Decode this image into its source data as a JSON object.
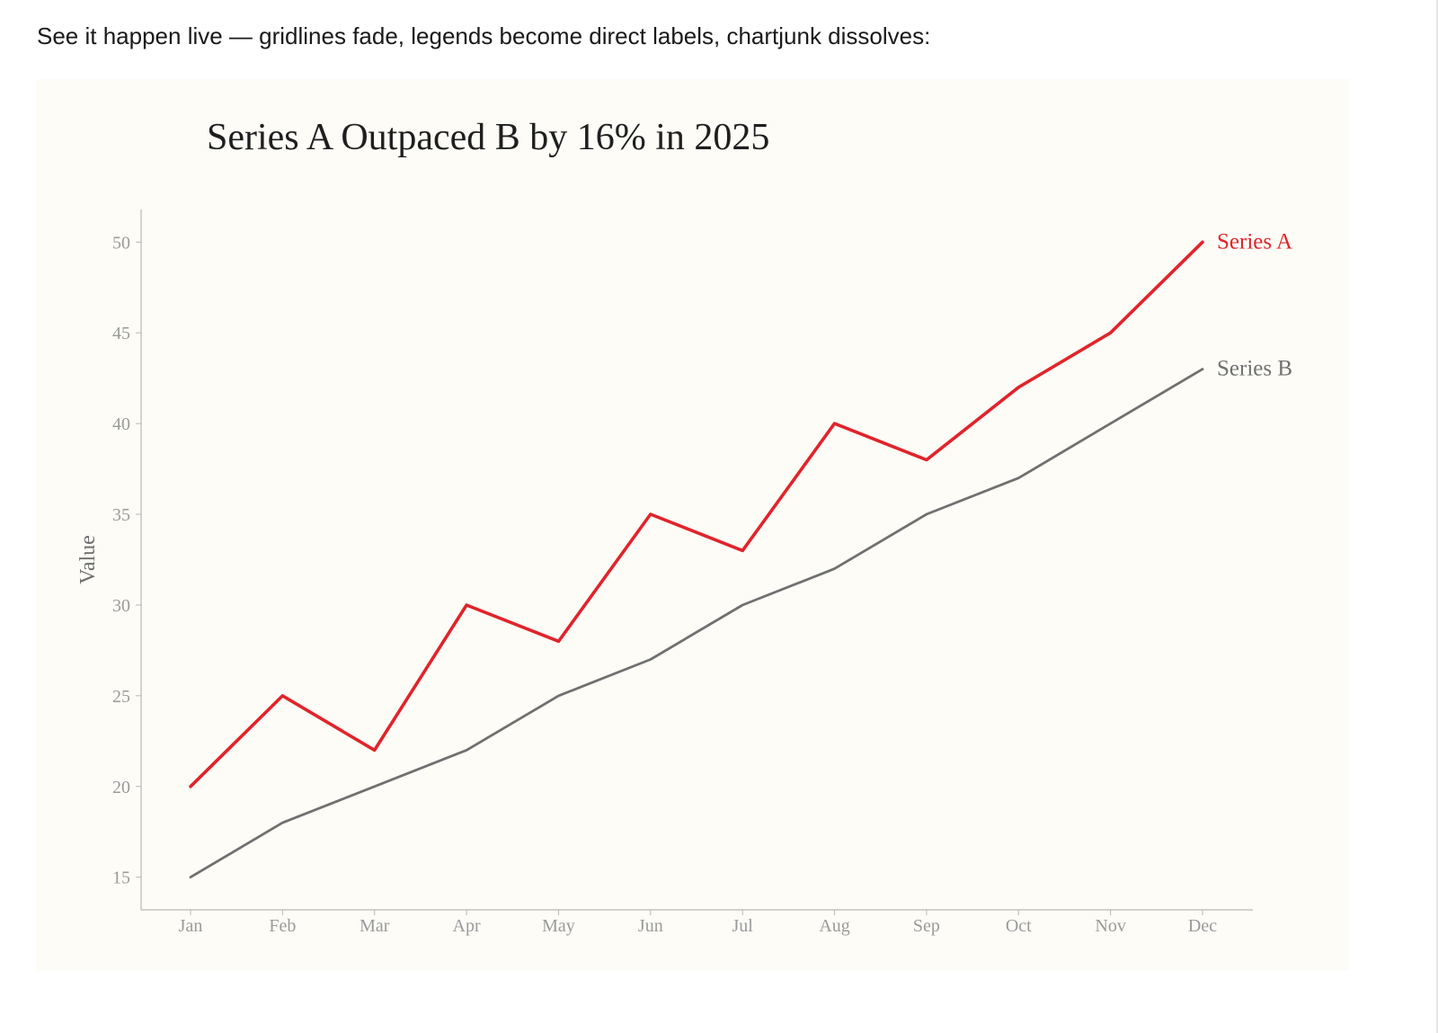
{
  "intro_text": "See it happen live — gridlines fade, legends become direct labels, chartjunk dissolves:",
  "chart_data": {
    "type": "line",
    "title": "Series A Outpaced B by 16% in 2025",
    "xlabel": "",
    "ylabel": "Value",
    "categories": [
      "Jan",
      "Feb",
      "Mar",
      "Apr",
      "May",
      "Jun",
      "Jul",
      "Aug",
      "Sep",
      "Oct",
      "Nov",
      "Dec"
    ],
    "ylim": [
      13.2,
      51.8
    ],
    "yticks": [
      15,
      20,
      25,
      30,
      35,
      40,
      45,
      50
    ],
    "grid": false,
    "legend": "direct labels at line ends",
    "series": [
      {
        "name": "Series A",
        "color": "#e0242b",
        "values": [
          20,
          25,
          22,
          30,
          28,
          35,
          33,
          40,
          38,
          42,
          45,
          50
        ]
      },
      {
        "name": "Series B",
        "color": "#707070",
        "values": [
          15,
          18,
          20,
          22,
          25,
          27,
          30,
          32,
          35,
          37,
          40,
          43
        ]
      }
    ]
  }
}
